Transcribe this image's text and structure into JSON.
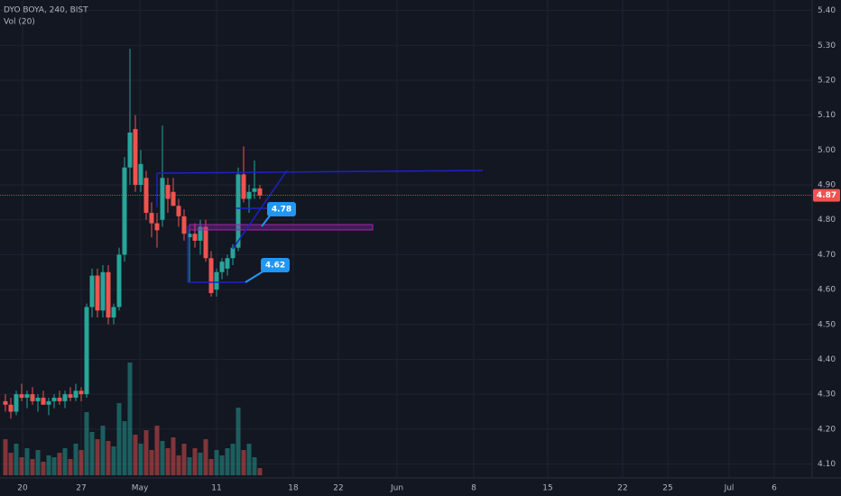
{
  "chart_data": {
    "type": "candlestick",
    "title": "DYO BOYA, 240, BIST",
    "subtitle": "Vol (20)",
    "up_color": "#26a69a",
    "down_color": "#ef5350",
    "open": [
      4.28,
      4.27,
      4.25,
      4.3,
      4.29,
      4.3,
      4.28,
      4.29,
      4.27,
      4.28,
      4.29,
      4.28,
      4.3,
      4.29,
      4.31,
      4.3,
      4.55,
      4.64,
      4.54,
      4.65,
      4.52,
      4.55,
      4.7,
      4.95,
      5.06,
      4.9,
      4.92,
      4.82,
      4.79,
      4.8,
      4.9,
      4.88,
      4.84,
      4.81,
      4.75,
      4.76,
      4.74,
      4.78,
      4.69,
      4.6,
      4.65,
      4.66,
      4.69,
      4.72,
      4.93,
      4.86,
      4.88,
      4.89
    ],
    "high": [
      4.3,
      4.29,
      4.31,
      4.33,
      4.31,
      4.32,
      4.3,
      4.31,
      4.29,
      4.3,
      4.31,
      4.31,
      4.32,
      4.33,
      4.32,
      4.56,
      4.66,
      4.66,
      4.67,
      4.67,
      4.56,
      4.72,
      4.98,
      5.29,
      5.1,
      5.0,
      4.94,
      4.85,
      4.82,
      5.07,
      4.92,
      4.92,
      4.86,
      4.83,
      4.78,
      4.79,
      4.8,
      4.8,
      4.71,
      4.66,
      4.69,
      4.7,
      4.73,
      4.95,
      5.01,
      4.9,
      4.97,
      4.9
    ],
    "low": [
      4.25,
      4.23,
      4.24,
      4.28,
      4.26,
      4.27,
      4.25,
      4.27,
      4.24,
      4.26,
      4.27,
      4.26,
      4.28,
      4.28,
      4.28,
      4.29,
      4.52,
      4.52,
      4.52,
      4.5,
      4.5,
      4.54,
      4.68,
      4.9,
      4.88,
      4.88,
      4.8,
      4.75,
      4.72,
      4.78,
      4.82,
      4.84,
      4.78,
      4.74,
      4.62,
      4.72,
      4.7,
      4.68,
      4.58,
      4.58,
      4.63,
      4.64,
      4.67,
      4.71,
      4.85,
      4.82,
      4.86,
      4.86
    ],
    "close": [
      4.27,
      4.25,
      4.3,
      4.29,
      4.3,
      4.28,
      4.29,
      4.27,
      4.28,
      4.29,
      4.28,
      4.3,
      4.29,
      4.31,
      4.3,
      4.55,
      4.64,
      4.54,
      4.65,
      4.52,
      4.55,
      4.7,
      4.95,
      5.05,
      4.9,
      4.96,
      4.82,
      4.79,
      4.77,
      4.92,
      4.86,
      4.84,
      4.81,
      4.76,
      4.76,
      4.74,
      4.78,
      4.69,
      4.59,
      4.65,
      4.68,
      4.69,
      4.72,
      4.93,
      4.86,
      4.88,
      4.89,
      4.87
    ],
    "volume": [
      40,
      25,
      35,
      20,
      30,
      18,
      28,
      15,
      22,
      20,
      25,
      30,
      18,
      35,
      28,
      70,
      48,
      40,
      55,
      38,
      32,
      80,
      60,
      125,
      45,
      35,
      50,
      28,
      55,
      38,
      30,
      42,
      22,
      35,
      20,
      30,
      25,
      40,
      18,
      28,
      22,
      30,
      35,
      75,
      28,
      35,
      20,
      8
    ],
    "ylim": [
      4.06,
      5.43
    ],
    "yticks": [
      {
        "value": 5.4,
        "label": "5.40"
      },
      {
        "value": 5.3,
        "label": "5.30"
      },
      {
        "value": 5.2,
        "label": "5.20"
      },
      {
        "value": 5.1,
        "label": "5.10"
      },
      {
        "value": 5.0,
        "label": "5.00"
      },
      {
        "value": 4.9,
        "label": "4.90"
      },
      {
        "value": 4.8,
        "label": "4.80"
      },
      {
        "value": 4.7,
        "label": "4.70"
      },
      {
        "value": 4.6,
        "label": "4.60"
      },
      {
        "value": 4.5,
        "label": "4.50"
      },
      {
        "value": 4.4,
        "label": "4.40"
      },
      {
        "value": 4.3,
        "label": "4.30"
      },
      {
        "value": 4.2,
        "label": "4.20"
      },
      {
        "value": 4.1,
        "label": "4.10"
      }
    ],
    "xticks": [
      "20",
      "27",
      "May",
      "11",
      "18",
      "22",
      "Jun",
      "8",
      "15",
      "22",
      "25",
      "Jul",
      "6"
    ],
    "grid": true,
    "price_labels": [
      4.78,
      4.62
    ],
    "last_price": 4.87,
    "last_price_color": "#f05350"
  }
}
